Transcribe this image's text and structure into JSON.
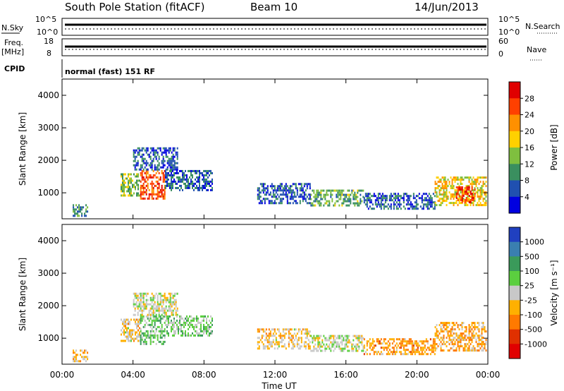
{
  "header": {
    "station": "South Pole Station (fitACF)",
    "beam": "Beam 10",
    "date": "14/Jun/2013"
  },
  "strips": {
    "nsky_label": "N.Sky",
    "nsky_ticks": [
      "10^5",
      "10^0"
    ],
    "nsearch_label": "N.Search",
    "nsearch_ticks": [
      "10^5",
      "10^0"
    ],
    "freq_label": "Freq.",
    "freq_unit": "[MHz]",
    "freq_ticks": [
      "18",
      "8"
    ],
    "nave_label": "Nave",
    "nave_ticks": [
      "60",
      "0"
    ],
    "cpid_label": "CPID",
    "cpid_text": "normal (fast) 151 RF"
  },
  "chart_data": [
    {
      "type": "heatmap",
      "title": "",
      "xlabel": "Time UT",
      "ylabel": "Slant Range [km]",
      "x_ticks": [
        "00:00",
        "04:00",
        "08:00",
        "12:00",
        "16:00",
        "20:00",
        "00:00"
      ],
      "xlim_hours": [
        0,
        24
      ],
      "ylim": [
        200,
        4500
      ],
      "y_ticks": [
        1000,
        2000,
        3000,
        4000
      ],
      "colorbar": {
        "label": "Power [dB]",
        "ticks": [
          "28",
          "24",
          "20",
          "16",
          "12",
          "8",
          "4"
        ],
        "colors": [
          "#e00000",
          "#ff4000",
          "#ff9000",
          "#ffd000",
          "#7fbf3f",
          "#3a8f5f",
          "#2050b0",
          "#0000e0"
        ],
        "range": [
          0,
          32
        ]
      },
      "regions": [
        {
          "t0": 0.6,
          "t1": 1.4,
          "r0": 300,
          "r1": 650,
          "value": 10
        },
        {
          "t0": 3.3,
          "t1": 4.4,
          "r0": 900,
          "r1": 1600,
          "value": 14
        },
        {
          "t0": 4.4,
          "t1": 5.8,
          "r0": 800,
          "r1": 1700,
          "value": 26
        },
        {
          "t0": 4.0,
          "t1": 6.5,
          "r0": 1700,
          "r1": 2400,
          "value": 6
        },
        {
          "t0": 5.8,
          "t1": 8.5,
          "r0": 1100,
          "r1": 1700,
          "value": 7
        },
        {
          "t0": 11.0,
          "t1": 14.0,
          "r0": 700,
          "r1": 1300,
          "value": 6
        },
        {
          "t0": 14.0,
          "t1": 17.0,
          "r0": 600,
          "r1": 1100,
          "value": 12
        },
        {
          "t0": 17.0,
          "t1": 21.0,
          "r0": 500,
          "r1": 1000,
          "value": 6
        },
        {
          "t0": 21.0,
          "t1": 23.9,
          "r0": 600,
          "r1": 1500,
          "value": 18
        },
        {
          "t0": 22.2,
          "t1": 23.3,
          "r0": 700,
          "r1": 1200,
          "value": 28
        }
      ]
    },
    {
      "type": "heatmap",
      "title": "",
      "xlabel": "Time UT",
      "ylabel": "Slant Range [km]",
      "x_ticks": [
        "00:00",
        "04:00",
        "08:00",
        "12:00",
        "16:00",
        "20:00",
        "00:00"
      ],
      "xlim_hours": [
        0,
        24
      ],
      "ylim": [
        200,
        4500
      ],
      "y_ticks": [
        1000,
        2000,
        3000,
        4000
      ],
      "colorbar": {
        "label": "Velocity [m s⁻¹]",
        "ticks": [
          "1000",
          "500",
          "100",
          "25",
          "-25",
          "-100",
          "-500",
          "-1000"
        ],
        "colors": [
          "#2040c0",
          "#3a7fb0",
          "#3a9a5a",
          "#5bcf3f",
          "#c8c8c8",
          "#ffb000",
          "#ff7a00",
          "#e03000",
          "#e00000"
        ],
        "range": [
          -1200,
          1200
        ]
      },
      "regions": [
        {
          "t0": 0.6,
          "t1": 1.4,
          "r0": 300,
          "r1": 650,
          "value": -200
        },
        {
          "t0": 3.3,
          "t1": 4.4,
          "r0": 900,
          "r1": 1600,
          "value": -150
        },
        {
          "t0": 4.4,
          "t1": 5.8,
          "r0": 800,
          "r1": 1700,
          "value": 300
        },
        {
          "t0": 4.0,
          "t1": 6.5,
          "r0": 1700,
          "r1": 2400,
          "value": 0
        },
        {
          "t0": 5.8,
          "t1": 8.5,
          "r0": 1100,
          "r1": 1700,
          "value": 200
        },
        {
          "t0": 11.0,
          "t1": 14.0,
          "r0": 700,
          "r1": 1300,
          "value": -150
        },
        {
          "t0": 14.0,
          "t1": 17.0,
          "r0": 600,
          "r1": 1100,
          "value": 20
        },
        {
          "t0": 17.0,
          "t1": 21.0,
          "r0": 500,
          "r1": 1000,
          "value": -400
        },
        {
          "t0": 21.0,
          "t1": 23.9,
          "r0": 600,
          "r1": 1500,
          "value": -300
        }
      ]
    }
  ]
}
